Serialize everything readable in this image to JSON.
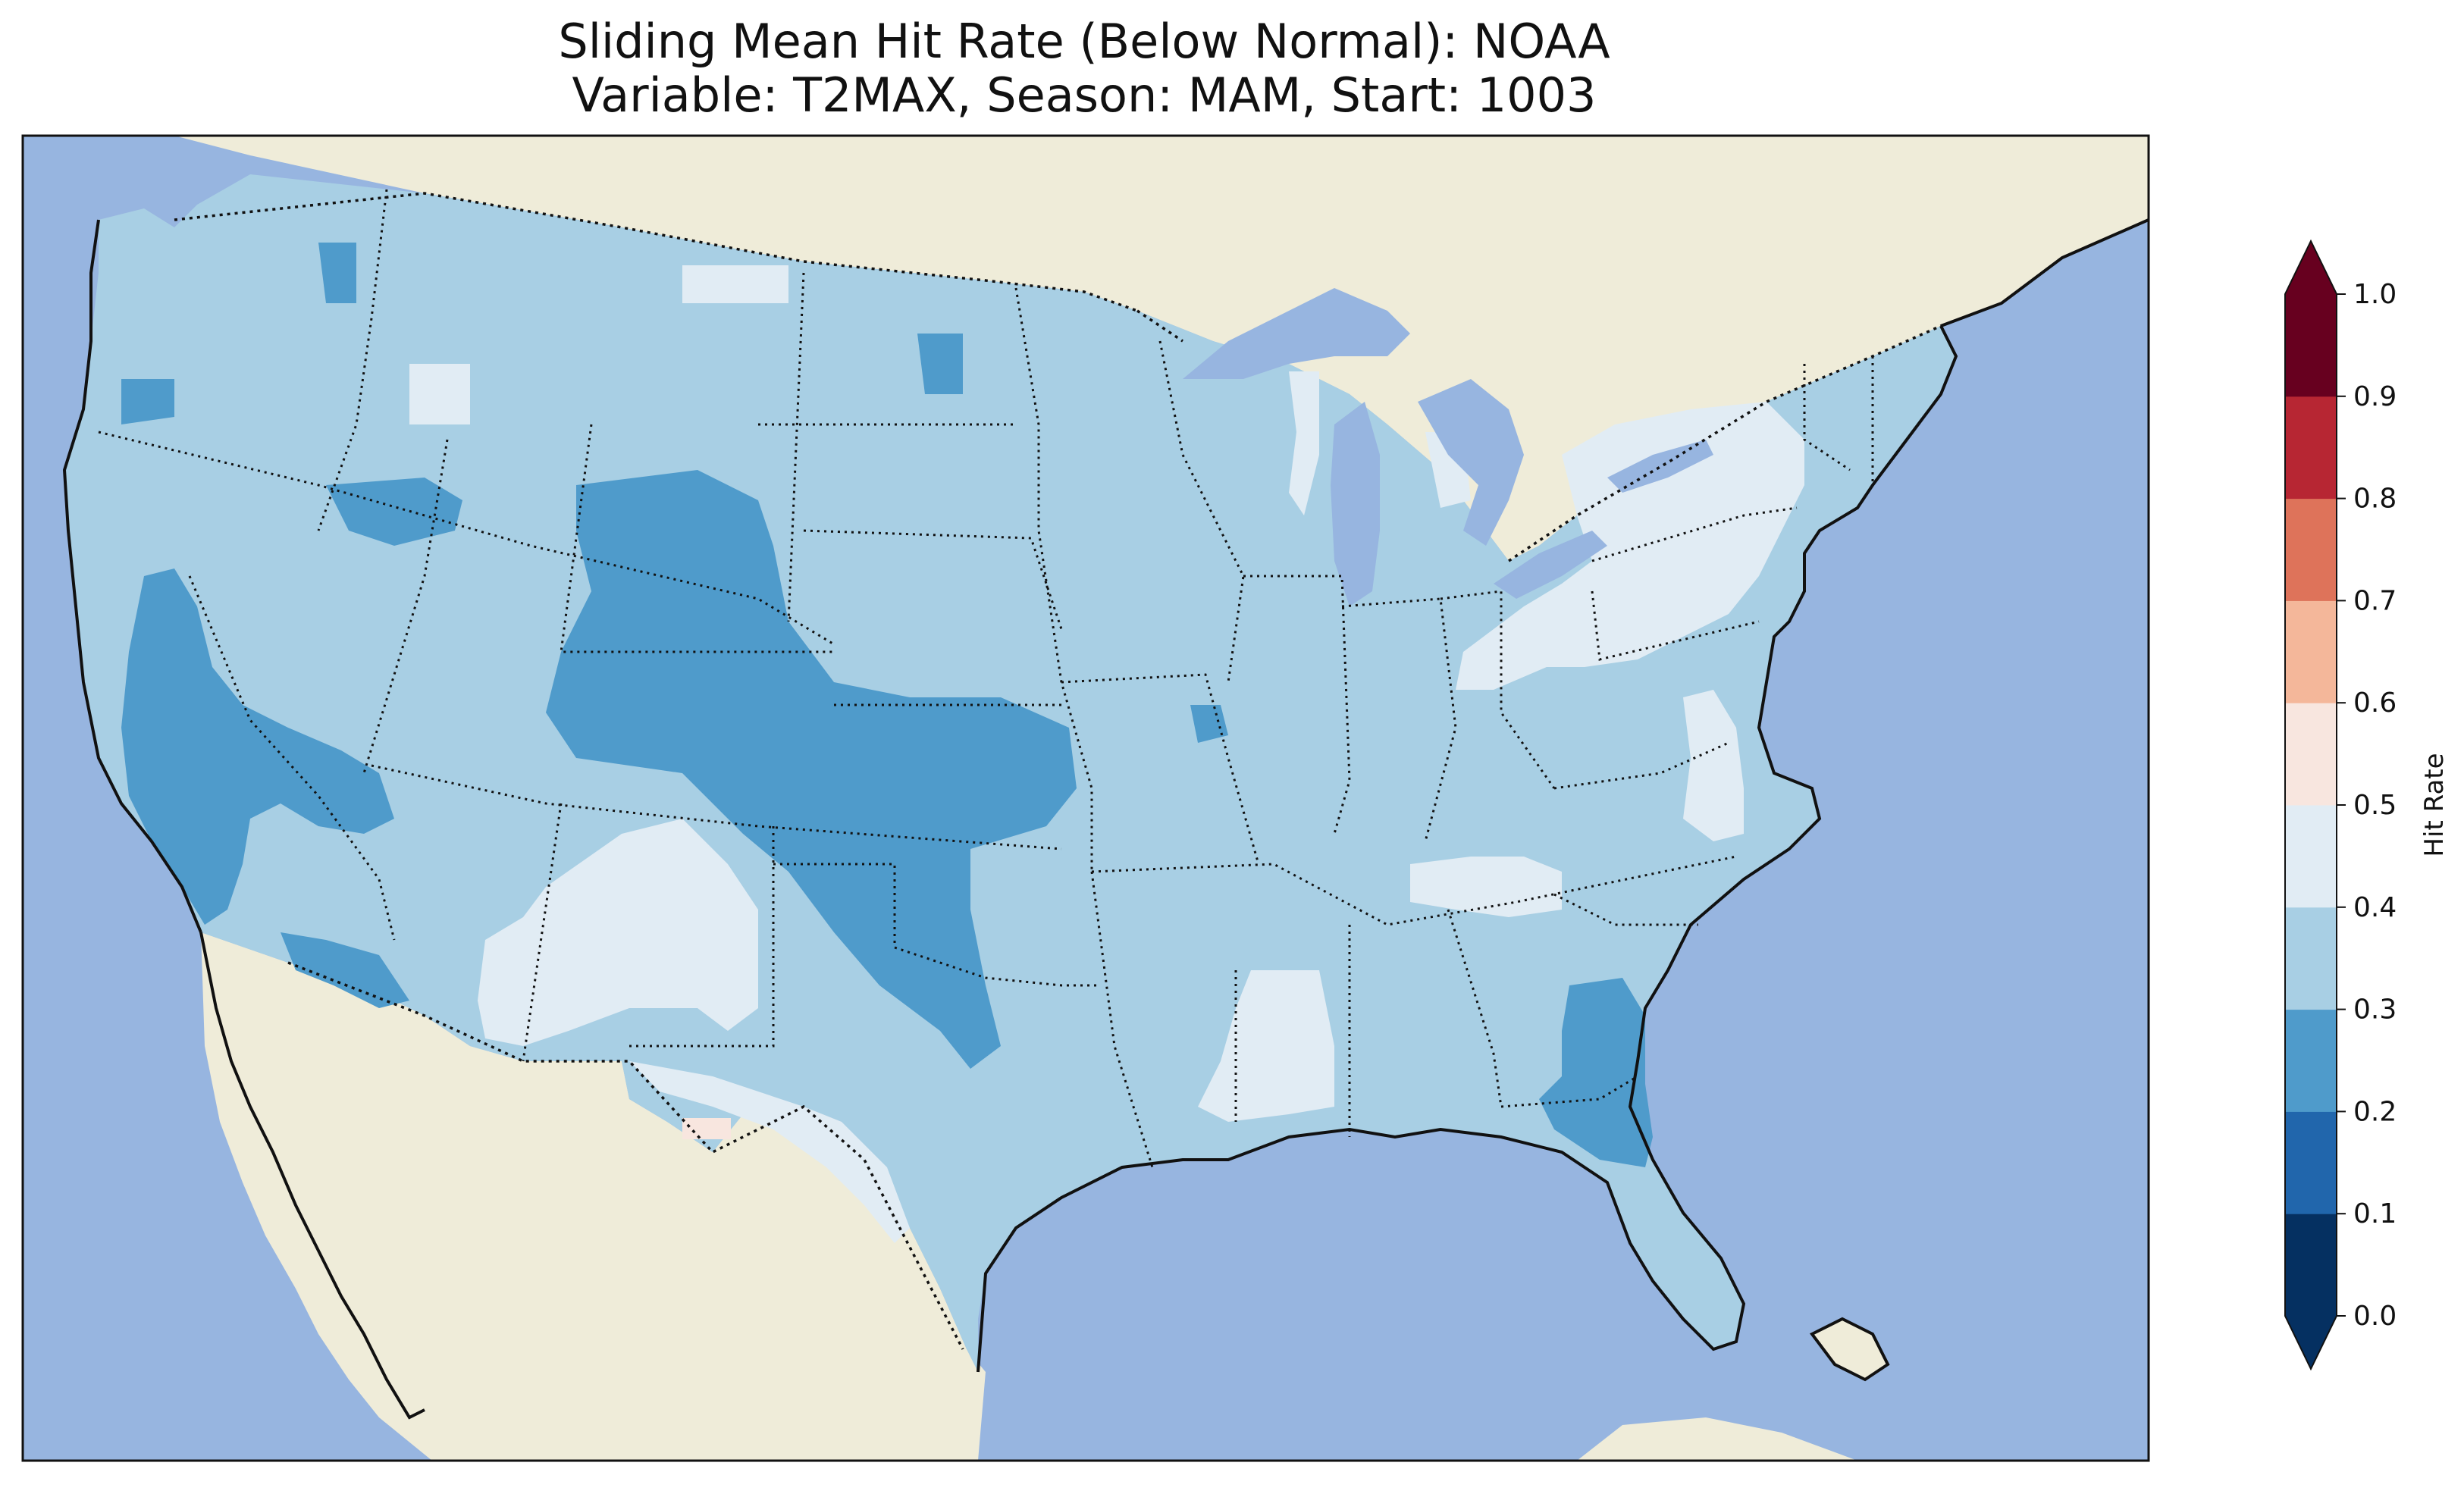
{
  "figure": {
    "title_line1": "Sliding Mean Hit Rate (Below Normal): NOAA",
    "title_line2": "Variable: T2MAX, Season: MAM, Start: 1003"
  },
  "colorbar": {
    "label": "Hit Rate",
    "ticks": [
      "0.0",
      "0.1",
      "0.2",
      "0.3",
      "0.4",
      "0.5",
      "0.6",
      "0.7",
      "0.8",
      "0.9",
      "1.0"
    ],
    "bins": [
      {
        "range": [
          0.0,
          0.1
        ],
        "color": "#053061"
      },
      {
        "range": [
          0.1,
          0.2
        ],
        "color": "#2166ac"
      },
      {
        "range": [
          0.2,
          0.3
        ],
        "color": "#4f9bcb"
      },
      {
        "range": [
          0.3,
          0.4
        ],
        "color": "#a8cfe4"
      },
      {
        "range": [
          0.4,
          0.5
        ],
        "color": "#e1ecf4"
      },
      {
        "range": [
          0.5,
          0.6
        ],
        "color": "#f8e6df"
      },
      {
        "range": [
          0.6,
          0.7
        ],
        "color": "#f4b79a"
      },
      {
        "range": [
          0.7,
          0.8
        ],
        "color": "#de735a"
      },
      {
        "range": [
          0.8,
          0.9
        ],
        "color": "#b72633"
      },
      {
        "range": [
          0.9,
          1.0
        ],
        "color": "#67001f"
      }
    ],
    "extend": "both"
  },
  "map": {
    "region": "Contiguous United States",
    "ocean_color": "#97b5e0",
    "land_color": "#efecd9",
    "dominant_value_bin": "0.3-0.4",
    "regions": [
      {
        "name": "Wyoming-Colorado-Kansas-Oklahoma plains",
        "bin": "0.2-0.3"
      },
      {
        "name": "California Central Valley / southern California",
        "bin": "0.2-0.3"
      },
      {
        "name": "Georgia-north Florida",
        "bin": "0.2-0.3"
      },
      {
        "name": "New Mexico / west Texas",
        "bin": "0.4-0.5"
      },
      {
        "name": "Ohio-Pennsylvania-New York",
        "bin": "0.4-0.5"
      },
      {
        "name": "Mississippi / Tennessee",
        "bin": "0.4-0.5"
      },
      {
        "name": "Big Bend Texas spot",
        "bin": "0.5-0.6"
      }
    ]
  }
}
